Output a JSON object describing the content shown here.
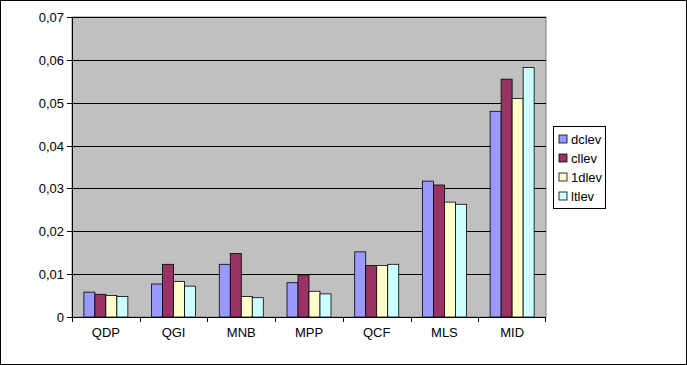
{
  "chart_data": {
    "type": "bar",
    "categories": [
      "QDP",
      "QGI",
      "MNB",
      "MPP",
      "QCF",
      "MLS",
      "MID"
    ],
    "series": [
      {
        "name": "dclev",
        "color": "#9999ff",
        "values": [
          0.0058,
          0.0077,
          0.0123,
          0.008,
          0.0152,
          0.0317,
          0.048
        ]
      },
      {
        "name": "cllev",
        "color": "#993366",
        "values": [
          0.0053,
          0.0123,
          0.0148,
          0.0098,
          0.012,
          0.0308,
          0.0555
        ]
      },
      {
        "name": "1dlev",
        "color": "#ffffcc",
        "values": [
          0.005,
          0.0083,
          0.0048,
          0.006,
          0.012,
          0.0268,
          0.051
        ]
      },
      {
        "name": "ltlev",
        "color": "#ccffff",
        "values": [
          0.0048,
          0.0072,
          0.0045,
          0.0054,
          0.0123,
          0.0263,
          0.0582
        ]
      }
    ],
    "ylim": [
      0,
      0.07
    ],
    "yticks": [
      0,
      {
        "value": 0.01,
        "label": "0,01"
      },
      {
        "value": 0.02,
        "label": "0,02"
      },
      {
        "value": 0.03,
        "label": "0,03"
      },
      {
        "value": 0.04,
        "label": "0,04"
      },
      {
        "value": 0.05,
        "label": "0,05"
      },
      {
        "value": 0.06,
        "label": "0,06"
      },
      {
        "value": 0.07,
        "label": "0,07"
      }
    ],
    "grid": true,
    "legend": "right"
  }
}
